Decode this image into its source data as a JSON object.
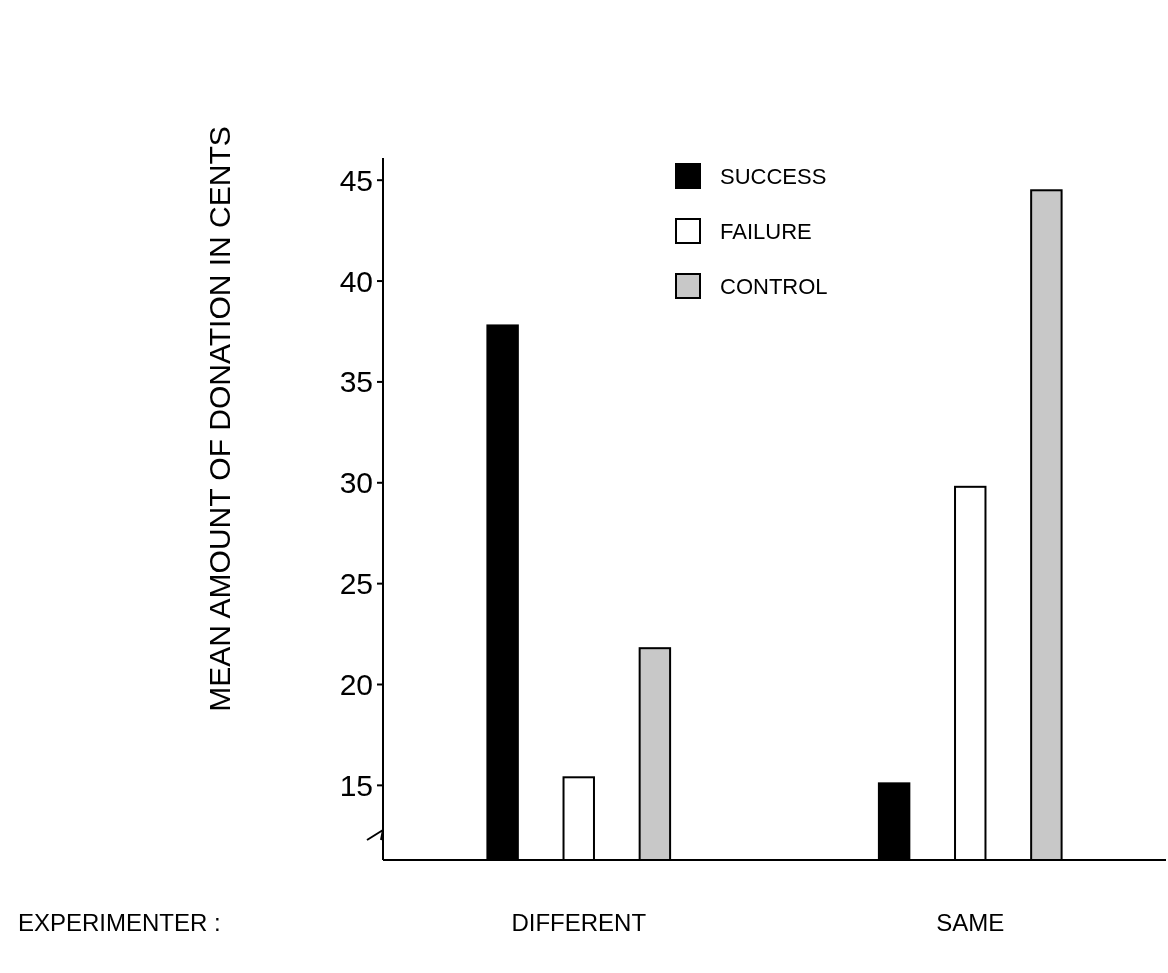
{
  "chart_data": {
    "type": "bar",
    "ylabel": "MEAN AMOUNT OF DONATION IN CENTS",
    "xlabel": "EXPERIMENTER :",
    "categories": [
      "DIFFERENT",
      "SAME"
    ],
    "series": [
      {
        "name": "SUCCESS",
        "color": "#000000",
        "values": [
          37.8,
          15.1
        ]
      },
      {
        "name": "FAILURE",
        "color": "#ffffff",
        "values": [
          15.4,
          29.8
        ]
      },
      {
        "name": "CONTROL",
        "color": "#c8c8c8",
        "values": [
          21.8,
          44.5
        ]
      }
    ],
    "ylim": [
      11.3,
      46.1
    ],
    "yticks": [
      15,
      20,
      25,
      30,
      35,
      40,
      45
    ],
    "grid": false,
    "legend": "top right"
  }
}
